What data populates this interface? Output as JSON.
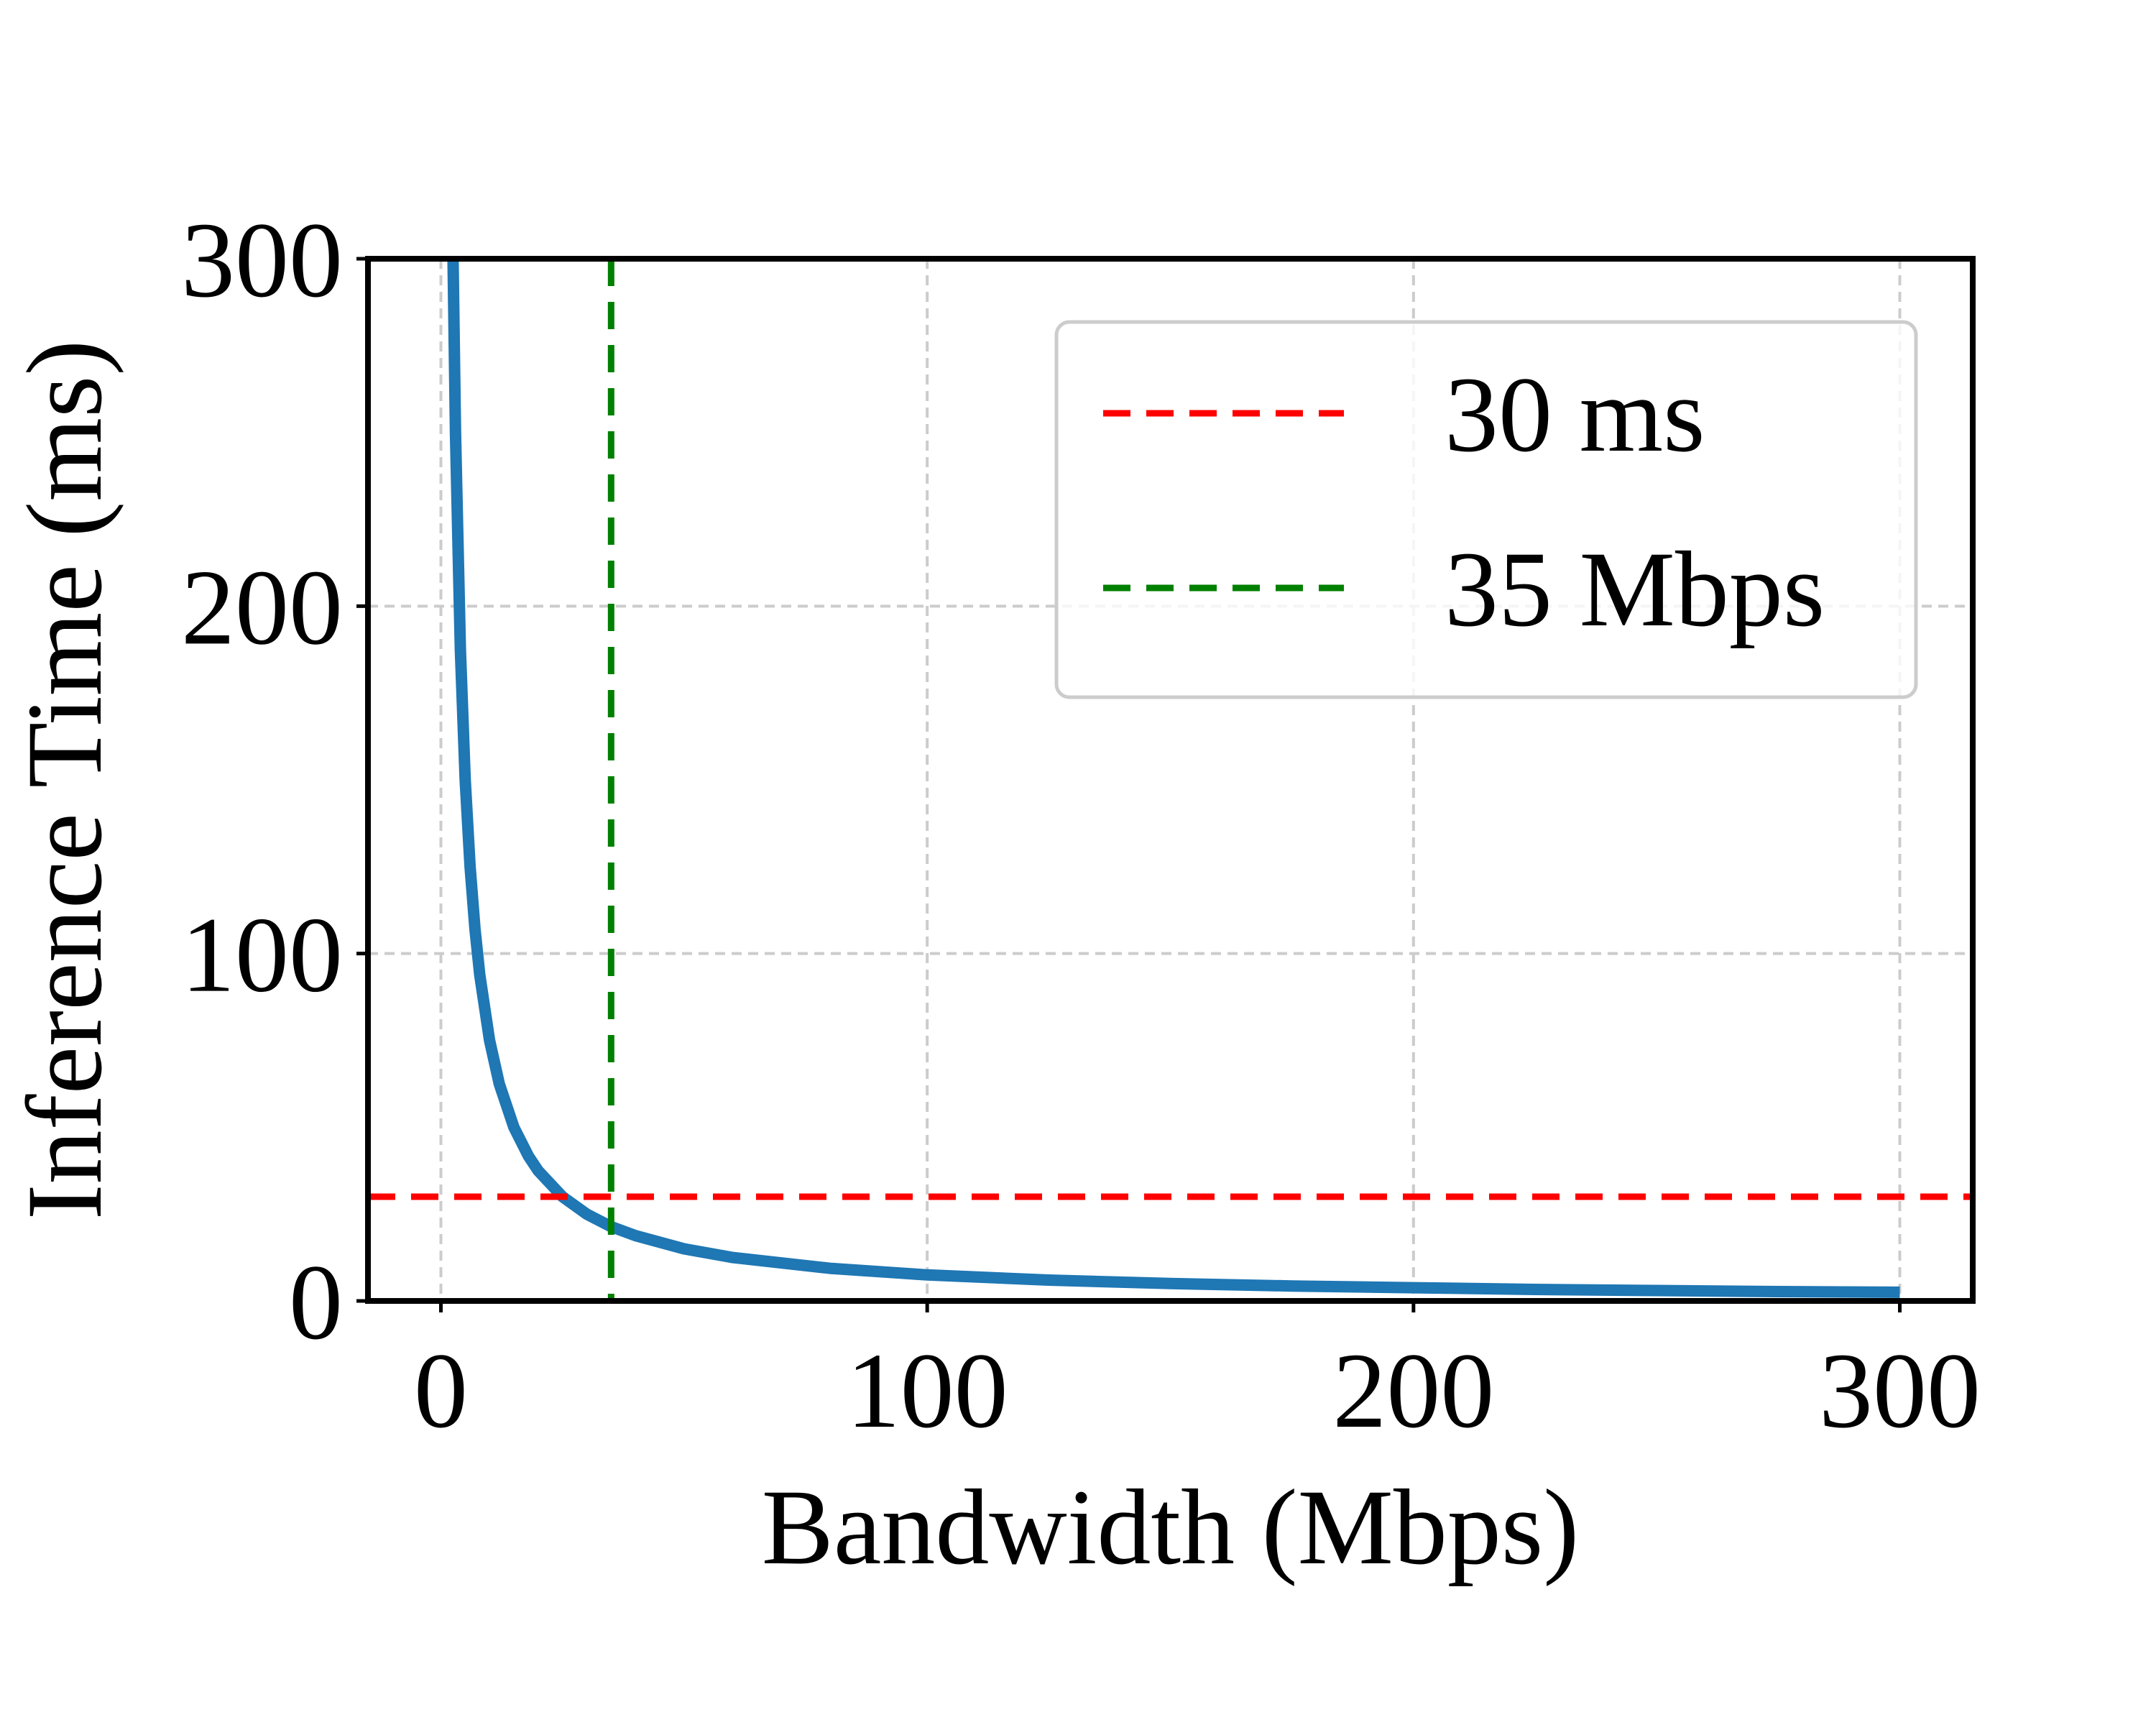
{
  "chart_data": {
    "type": "line",
    "title": "",
    "xlabel": "Bandwidth (Mbps)",
    "ylabel": "Inference Time (ms)",
    "xlim": [
      -15,
      315
    ],
    "ylim": [
      0,
      300
    ],
    "xticks": [
      0,
      100,
      200,
      300
    ],
    "yticks": [
      0,
      100,
      200,
      300
    ],
    "xtick_labels": [
      "0",
      "100",
      "200",
      "300"
    ],
    "ytick_labels": [
      "0",
      "100",
      "200",
      "300"
    ],
    "grid": true,
    "legend_position": "top-right",
    "series": [
      {
        "color": "#1f77b4",
        "x": [
          2.5,
          3,
          4,
          5,
          6,
          7,
          8,
          10,
          12,
          15,
          18,
          20,
          25,
          30,
          35,
          40,
          50,
          60,
          80,
          100,
          125,
          150,
          175,
          200,
          225,
          250,
          275,
          300
        ],
        "y": [
          300,
          250,
          187.5,
          150,
          125,
          107.1,
          93.8,
          75,
          62.5,
          50,
          41.7,
          37.5,
          30,
          25,
          21.4,
          18.8,
          15,
          12.5,
          9.4,
          7.5,
          6,
          5,
          4.3,
          3.8,
          3.3,
          3,
          2.7,
          2.5
        ]
      }
    ],
    "reference_lines": [
      {
        "name": "30 ms",
        "orientation": "horizontal",
        "value": 30,
        "color": "#ff0000",
        "style": "dashed"
      },
      {
        "name": "35 Mbps",
        "orientation": "vertical",
        "value": 35,
        "color": "#008000",
        "style": "dashed"
      }
    ]
  }
}
